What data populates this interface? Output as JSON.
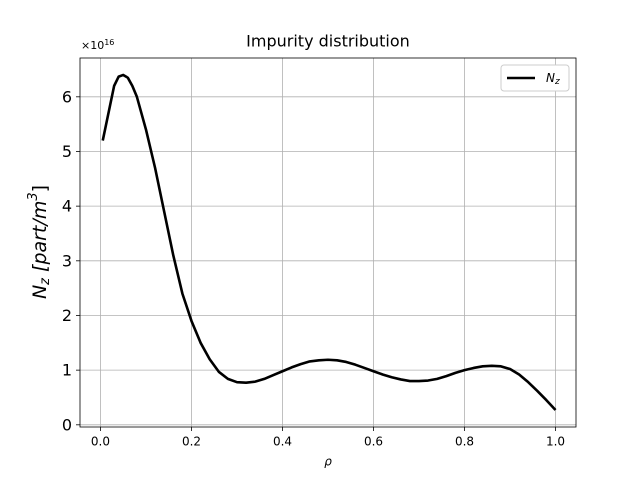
{
  "chart_data": {
    "type": "line",
    "title": "Impurity distribution",
    "xlabel": "ρ",
    "ylabel": {
      "main": "N",
      "sub": "z",
      "mid": " [part/m",
      "sup": "3",
      "end": "]"
    },
    "y_offset": {
      "base": "×10",
      "exponent": "16"
    },
    "x": [
      0.005,
      0.02,
      0.03,
      0.04,
      0.05,
      0.06,
      0.07,
      0.08,
      0.1,
      0.12,
      0.14,
      0.16,
      0.18,
      0.2,
      0.22,
      0.24,
      0.26,
      0.28,
      0.3,
      0.32,
      0.34,
      0.36,
      0.38,
      0.4,
      0.42,
      0.44,
      0.46,
      0.48,
      0.5,
      0.52,
      0.54,
      0.56,
      0.58,
      0.6,
      0.62,
      0.64,
      0.66,
      0.68,
      0.7,
      0.72,
      0.74,
      0.76,
      0.78,
      0.8,
      0.82,
      0.84,
      0.86,
      0.88,
      0.9,
      0.92,
      0.94,
      0.96,
      0.98,
      1.0
    ],
    "series": [
      {
        "name": "N",
        "name_sub": "z",
        "color": "#000000",
        "values": [
          5.2,
          5.8,
          6.2,
          6.37,
          6.4,
          6.35,
          6.2,
          6.0,
          5.4,
          4.7,
          3.9,
          3.1,
          2.4,
          1.9,
          1.5,
          1.2,
          0.97,
          0.84,
          0.78,
          0.77,
          0.79,
          0.84,
          0.91,
          0.98,
          1.05,
          1.11,
          1.16,
          1.18,
          1.19,
          1.18,
          1.15,
          1.1,
          1.04,
          0.98,
          0.92,
          0.87,
          0.83,
          0.8,
          0.8,
          0.81,
          0.84,
          0.89,
          0.95,
          1.0,
          1.04,
          1.07,
          1.08,
          1.07,
          1.02,
          0.92,
          0.78,
          0.62,
          0.45,
          0.27
        ]
      }
    ],
    "xlim": [
      -0.045,
      1.045
    ],
    "ylim": [
      -0.04,
      6.71
    ],
    "xticks": [
      {
        "value": 0,
        "label": "0.0"
      },
      0.2,
      0.4,
      0.6,
      0.8,
      {
        "value": 1,
        "label": "1.0"
      }
    ],
    "yticks": [
      0,
      1,
      2,
      3,
      4,
      5,
      6
    ],
    "grid": true,
    "legend": "upper right"
  }
}
